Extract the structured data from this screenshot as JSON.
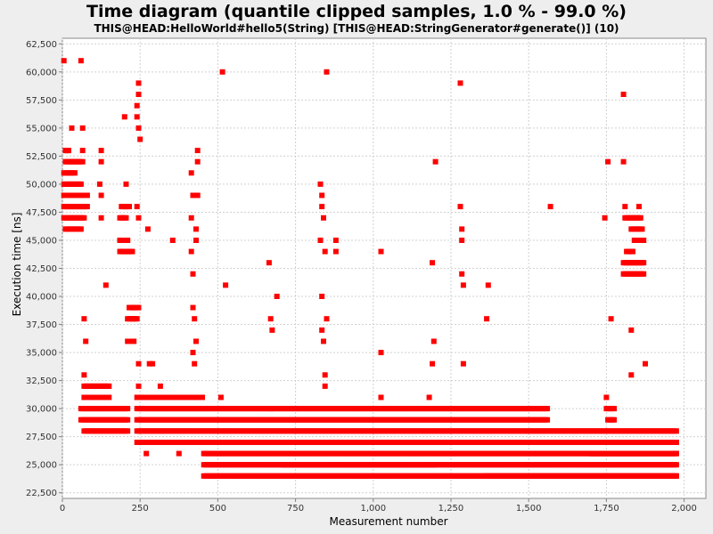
{
  "chart_data": {
    "type": "scatter",
    "title": "Time diagram (quantile clipped samples, 1.0 % - 99.0 %)",
    "subtitle": "THIS@HEAD:HelloWorld#hello5(String) [THIS@HEAD:StringGenerator#generate()] (10)",
    "xlabel": "Measurement number",
    "ylabel": "Execution time [ns]",
    "xlim": [
      0,
      2070
    ],
    "ylim": [
      22000,
      63000
    ],
    "x_ticks": [
      0,
      250,
      500,
      750,
      1000,
      1250,
      1500,
      1750,
      2000
    ],
    "x_tick_labels": [
      "0",
      "250",
      "500",
      "750",
      "1,000",
      "1,250",
      "1,500",
      "1,750",
      "2,000"
    ],
    "y_ticks": [
      22500,
      25000,
      27500,
      30000,
      32500,
      35000,
      37500,
      40000,
      42500,
      45000,
      47500,
      50000,
      52500,
      55000,
      57500,
      60000,
      62500
    ],
    "y_tick_labels": [
      "22,500",
      "25,000",
      "27,500",
      "30,000",
      "32,500",
      "35,000",
      "37,500",
      "40,000",
      "42,500",
      "45,000",
      "47,500",
      "50,000",
      "52,500",
      "55,000",
      "57,500",
      "60,000",
      "62,500"
    ],
    "grid": true,
    "marker_color": "#ff0000",
    "background_color": "#ffffff",
    "segments": [
      {
        "y": 24000,
        "x_start": 455,
        "x_end": 1975,
        "step": 5
      },
      {
        "y": 25000,
        "x_start": 455,
        "x_end": 1975,
        "step": 5
      },
      {
        "y": 26000,
        "x_start": 455,
        "x_end": 1975,
        "step": 5
      },
      {
        "y": 27000,
        "x_start": 240,
        "x_end": 1975,
        "step": 5
      },
      {
        "y": 28000,
        "x_start": 240,
        "x_end": 1975,
        "step": 5
      },
      {
        "y": 29000,
        "x_start": 240,
        "x_end": 1560,
        "step": 5
      },
      {
        "y": 30000,
        "x_start": 240,
        "x_end": 1560,
        "step": 5
      },
      {
        "y": 31000,
        "x_start": 240,
        "x_end": 450,
        "step": 5
      },
      {
        "y": 24000,
        "x_start": 1360,
        "x_end": 1975,
        "step": 5
      },
      {
        "y": 29000,
        "x_start": 60,
        "x_end": 210,
        "step": 5
      },
      {
        "y": 30000,
        "x_start": 60,
        "x_end": 210,
        "step": 5
      },
      {
        "y": 31000,
        "x_start": 70,
        "x_end": 150,
        "step": 5
      },
      {
        "y": 32000,
        "x_start": 70,
        "x_end": 150,
        "step": 5
      },
      {
        "y": 28000,
        "x_start": 70,
        "x_end": 210,
        "step": 5
      },
      {
        "y": 46000,
        "x_start": 10,
        "x_end": 60,
        "step": 5
      },
      {
        "y": 47000,
        "x_start": 5,
        "x_end": 70,
        "step": 5
      },
      {
        "y": 48000,
        "x_start": 5,
        "x_end": 80,
        "step": 5
      },
      {
        "y": 49000,
        "x_start": 5,
        "x_end": 80,
        "step": 5
      },
      {
        "y": 50000,
        "x_start": 5,
        "x_end": 60,
        "step": 5
      },
      {
        "y": 51000,
        "x_start": 5,
        "x_end": 40,
        "step": 5
      },
      {
        "y": 52000,
        "x_start": 10,
        "x_end": 65,
        "step": 5
      },
      {
        "y": 53000,
        "x_start": 10,
        "x_end": 20,
        "step": 5
      },
      {
        "y": 44000,
        "x_start": 185,
        "x_end": 225,
        "step": 5
      },
      {
        "y": 45000,
        "x_start": 185,
        "x_end": 210,
        "step": 5
      },
      {
        "y": 47000,
        "x_start": 185,
        "x_end": 205,
        "step": 5
      },
      {
        "y": 48000,
        "x_start": 190,
        "x_end": 215,
        "step": 5
      },
      {
        "y": 39000,
        "x_start": 215,
        "x_end": 245,
        "step": 5
      },
      {
        "y": 38000,
        "x_start": 210,
        "x_end": 240,
        "step": 5
      },
      {
        "y": 36000,
        "x_start": 210,
        "x_end": 230,
        "step": 5
      },
      {
        "y": 25000,
        "x_start": 710,
        "x_end": 1200,
        "step": 5
      },
      {
        "y": 43000,
        "x_start": 1805,
        "x_end": 1870,
        "step": 5
      },
      {
        "y": 42000,
        "x_start": 1805,
        "x_end": 1870,
        "step": 5
      },
      {
        "y": 44000,
        "x_start": 1815,
        "x_end": 1835,
        "step": 5
      },
      {
        "y": 47000,
        "x_start": 1810,
        "x_end": 1860,
        "step": 5
      },
      {
        "y": 46000,
        "x_start": 1830,
        "x_end": 1865,
        "step": 5
      },
      {
        "y": 45000,
        "x_start": 1840,
        "x_end": 1870,
        "step": 5
      },
      {
        "y": 30000,
        "x_start": 1750,
        "x_end": 1775,
        "step": 5
      },
      {
        "y": 29000,
        "x_start": 1755,
        "x_end": 1775,
        "step": 5
      },
      {
        "y": 26000,
        "x_start": 1700,
        "x_end": 1975,
        "step": 5
      },
      {
        "y": 27000,
        "x_start": 1750,
        "x_end": 1975,
        "step": 5
      }
    ],
    "points": [
      {
        "x": 5,
        "y": 61000
      },
      {
        "x": 60,
        "y": 61000
      },
      {
        "x": 30,
        "y": 55000
      },
      {
        "x": 65,
        "y": 55000
      },
      {
        "x": 65,
        "y": 53000
      },
      {
        "x": 15,
        "y": 53000
      },
      {
        "x": 125,
        "y": 53000
      },
      {
        "x": 125,
        "y": 52000
      },
      {
        "x": 120,
        "y": 50000
      },
      {
        "x": 125,
        "y": 49000
      },
      {
        "x": 125,
        "y": 47000
      },
      {
        "x": 200,
        "y": 56000
      },
      {
        "x": 205,
        "y": 50000
      },
      {
        "x": 140,
        "y": 41000
      },
      {
        "x": 70,
        "y": 38000
      },
      {
        "x": 75,
        "y": 36000
      },
      {
        "x": 70,
        "y": 33000
      },
      {
        "x": 245,
        "y": 59000
      },
      {
        "x": 245,
        "y": 58000
      },
      {
        "x": 240,
        "y": 57000
      },
      {
        "x": 240,
        "y": 56000
      },
      {
        "x": 245,
        "y": 55000
      },
      {
        "x": 250,
        "y": 54000
      },
      {
        "x": 240,
        "y": 48000
      },
      {
        "x": 245,
        "y": 47000
      },
      {
        "x": 275,
        "y": 46000
      },
      {
        "x": 245,
        "y": 34000
      },
      {
        "x": 245,
        "y": 32000
      },
      {
        "x": 280,
        "y": 34000
      },
      {
        "x": 290,
        "y": 34000
      },
      {
        "x": 315,
        "y": 32000
      },
      {
        "x": 270,
        "y": 26000
      },
      {
        "x": 375,
        "y": 26000
      },
      {
        "x": 355,
        "y": 45000
      },
      {
        "x": 435,
        "y": 53000
      },
      {
        "x": 435,
        "y": 52000
      },
      {
        "x": 415,
        "y": 51000
      },
      {
        "x": 420,
        "y": 49000
      },
      {
        "x": 435,
        "y": 49000
      },
      {
        "x": 415,
        "y": 47000
      },
      {
        "x": 430,
        "y": 46000
      },
      {
        "x": 430,
        "y": 45000
      },
      {
        "x": 415,
        "y": 44000
      },
      {
        "x": 420,
        "y": 42000
      },
      {
        "x": 420,
        "y": 39000
      },
      {
        "x": 425,
        "y": 38000
      },
      {
        "x": 430,
        "y": 36000
      },
      {
        "x": 420,
        "y": 35000
      },
      {
        "x": 425,
        "y": 34000
      },
      {
        "x": 515,
        "y": 60000
      },
      {
        "x": 525,
        "y": 41000
      },
      {
        "x": 510,
        "y": 31000
      },
      {
        "x": 665,
        "y": 43000
      },
      {
        "x": 690,
        "y": 40000
      },
      {
        "x": 670,
        "y": 38000
      },
      {
        "x": 675,
        "y": 37000
      },
      {
        "x": 670,
        "y": 30000
      },
      {
        "x": 850,
        "y": 60000
      },
      {
        "x": 830,
        "y": 50000
      },
      {
        "x": 835,
        "y": 49000
      },
      {
        "x": 835,
        "y": 48000
      },
      {
        "x": 840,
        "y": 47000
      },
      {
        "x": 830,
        "y": 45000
      },
      {
        "x": 880,
        "y": 45000
      },
      {
        "x": 845,
        "y": 44000
      },
      {
        "x": 880,
        "y": 44000
      },
      {
        "x": 835,
        "y": 40000
      },
      {
        "x": 850,
        "y": 38000
      },
      {
        "x": 835,
        "y": 37000
      },
      {
        "x": 840,
        "y": 36000
      },
      {
        "x": 845,
        "y": 33000
      },
      {
        "x": 845,
        "y": 32000
      },
      {
        "x": 1025,
        "y": 44000
      },
      {
        "x": 1025,
        "y": 35000
      },
      {
        "x": 1025,
        "y": 31000
      },
      {
        "x": 1200,
        "y": 52000
      },
      {
        "x": 1190,
        "y": 43000
      },
      {
        "x": 1195,
        "y": 36000
      },
      {
        "x": 1190,
        "y": 34000
      },
      {
        "x": 1180,
        "y": 31000
      },
      {
        "x": 1280,
        "y": 59000
      },
      {
        "x": 1280,
        "y": 48000
      },
      {
        "x": 1285,
        "y": 46000
      },
      {
        "x": 1285,
        "y": 45000
      },
      {
        "x": 1285,
        "y": 42000
      },
      {
        "x": 1290,
        "y": 41000
      },
      {
        "x": 1290,
        "y": 34000
      },
      {
        "x": 1370,
        "y": 41000
      },
      {
        "x": 1365,
        "y": 38000
      },
      {
        "x": 1570,
        "y": 48000
      },
      {
        "x": 1745,
        "y": 47000
      },
      {
        "x": 1755,
        "y": 52000
      },
      {
        "x": 1805,
        "y": 52000
      },
      {
        "x": 1805,
        "y": 58000
      },
      {
        "x": 1810,
        "y": 48000
      },
      {
        "x": 1855,
        "y": 48000
      },
      {
        "x": 1765,
        "y": 38000
      },
      {
        "x": 1830,
        "y": 37000
      },
      {
        "x": 1750,
        "y": 31000
      },
      {
        "x": 1830,
        "y": 33000
      },
      {
        "x": 1875,
        "y": 34000
      }
    ]
  }
}
